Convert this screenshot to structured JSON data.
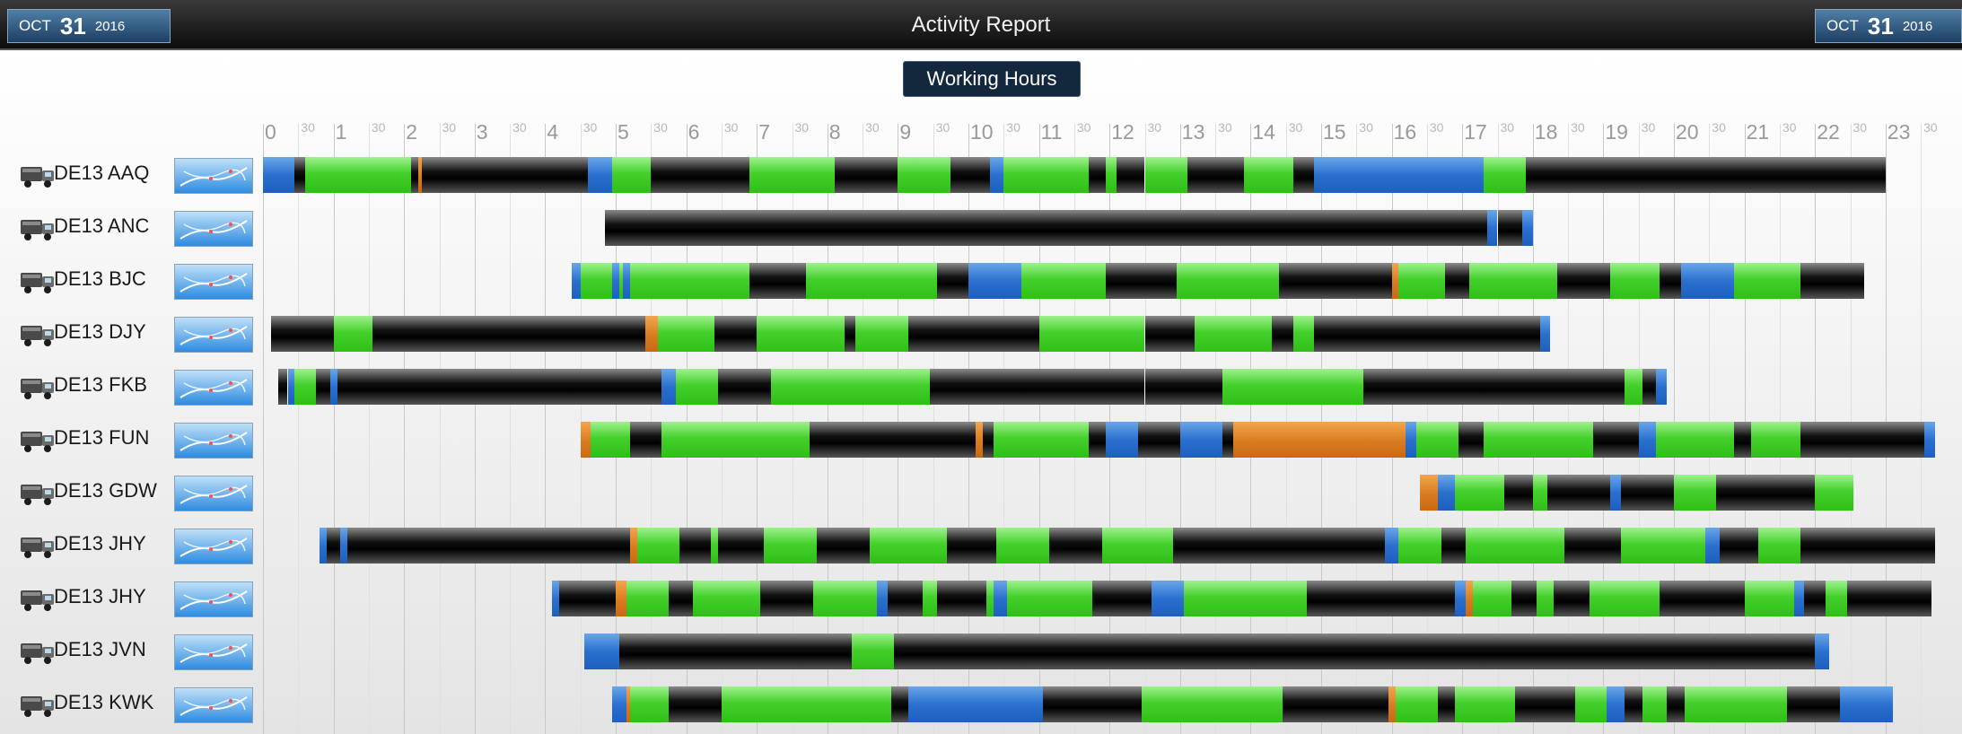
{
  "header": {
    "title": "Activity Report",
    "date_left": {
      "month": "OCT",
      "day": "31",
      "year": "2016"
    },
    "date_right": {
      "month": "OCT",
      "day": "31",
      "year": "2016"
    }
  },
  "section_button": "Working Hours",
  "timeline": {
    "hours": [
      "0",
      "1",
      "2",
      "3",
      "4",
      "5",
      "6",
      "7",
      "8",
      "9",
      "10",
      "11",
      "12",
      "13",
      "14",
      "15",
      "16",
      "17",
      "18",
      "19",
      "20",
      "21",
      "22",
      "23"
    ],
    "half_label": "30"
  },
  "colors": {
    "driving": "#2fbf17",
    "rest": "#000000",
    "available": "#2a70cf",
    "work": "#d87b1e"
  },
  "rows": [
    {
      "label": "DE13 AAQ",
      "segments": [
        [
          "blue",
          0.0,
          0.45
        ],
        [
          "black",
          0.45,
          0.6
        ],
        [
          "green",
          0.6,
          2.1
        ],
        [
          "black",
          2.1,
          2.2
        ],
        [
          "orange",
          2.2,
          2.25
        ],
        [
          "black",
          2.25,
          4.6
        ],
        [
          "blue",
          4.6,
          4.95
        ],
        [
          "green",
          4.95,
          5.5
        ],
        [
          "black",
          5.5,
          6.9
        ],
        [
          "green",
          6.9,
          7.45
        ],
        [
          "green",
          7.45,
          8.1
        ],
        [
          "black",
          8.1,
          9.0
        ],
        [
          "green",
          9.0,
          9.75
        ],
        [
          "black",
          9.75,
          10.3
        ],
        [
          "blue",
          10.3,
          10.5
        ],
        [
          "green",
          10.5,
          11.7
        ],
        [
          "black",
          11.7,
          11.95
        ],
        [
          "green",
          11.95,
          12.1
        ],
        [
          "black",
          12.1,
          12.5
        ],
        [
          "green",
          12.5,
          13.1
        ],
        [
          "black",
          13.1,
          13.9
        ],
        [
          "green",
          13.9,
          14.6
        ],
        [
          "black",
          14.6,
          14.9
        ],
        [
          "blue",
          14.9,
          17.3
        ],
        [
          "green",
          17.3,
          17.9
        ],
        [
          "black",
          17.9,
          23.0
        ]
      ]
    },
    {
      "label": "DE13 ANC",
      "segments": [
        [
          "black",
          4.85,
          17.35
        ],
        [
          "blue",
          17.35,
          17.5
        ],
        [
          "black",
          17.5,
          17.85
        ],
        [
          "blue",
          17.85,
          18.0
        ]
      ]
    },
    {
      "label": "DE13 BJC",
      "segments": [
        [
          "blue",
          4.38,
          4.5
        ],
        [
          "green",
          4.5,
          4.95
        ],
        [
          "blue",
          4.95,
          5.05
        ],
        [
          "green",
          5.05,
          5.1
        ],
        [
          "blue",
          5.1,
          5.2
        ],
        [
          "green",
          5.2,
          5.35
        ],
        [
          "green",
          5.35,
          6.9
        ],
        [
          "black",
          6.9,
          7.7
        ],
        [
          "green",
          7.7,
          8.2
        ],
        [
          "green",
          8.2,
          9.55
        ],
        [
          "black",
          9.55,
          10.0
        ],
        [
          "blue",
          10.0,
          10.75
        ],
        [
          "green",
          10.75,
          11.95
        ],
        [
          "black",
          11.95,
          12.95
        ],
        [
          "green",
          12.95,
          14.4
        ],
        [
          "black",
          14.4,
          16.0
        ],
        [
          "orange",
          16.0,
          16.1
        ],
        [
          "green",
          16.1,
          16.75
        ],
        [
          "black",
          16.75,
          17.1
        ],
        [
          "green",
          17.1,
          18.35
        ],
        [
          "black",
          18.35,
          19.1
        ],
        [
          "green",
          19.1,
          19.8
        ],
        [
          "black",
          19.8,
          20.1
        ],
        [
          "blue",
          20.1,
          20.85
        ],
        [
          "green",
          20.85,
          21.8
        ],
        [
          "black",
          21.8,
          22.7
        ]
      ]
    },
    {
      "label": "DE13 DJY",
      "segments": [
        [
          "black",
          0.12,
          1.0
        ],
        [
          "green",
          1.0,
          1.55
        ],
        [
          "black",
          1.55,
          5.42
        ],
        [
          "orange",
          5.42,
          5.6
        ],
        [
          "green",
          5.6,
          6.4
        ],
        [
          "black",
          6.4,
          7.0
        ],
        [
          "green",
          7.0,
          8.25
        ],
        [
          "black",
          8.25,
          8.4
        ],
        [
          "green",
          8.4,
          9.15
        ],
        [
          "black",
          9.15,
          11.0
        ],
        [
          "green",
          11.0,
          12.5
        ],
        [
          "black",
          12.5,
          13.2
        ],
        [
          "green",
          13.2,
          14.3
        ],
        [
          "black",
          14.3,
          14.6
        ],
        [
          "green",
          14.6,
          14.9
        ],
        [
          "black",
          14.9,
          18.1
        ],
        [
          "blue",
          18.1,
          18.25
        ]
      ]
    },
    {
      "label": "DE13 FKB",
      "segments": [
        [
          "black",
          0.22,
          0.35
        ],
        [
          "blue",
          0.35,
          0.45
        ],
        [
          "green",
          0.45,
          0.75
        ],
        [
          "black",
          0.75,
          0.95
        ],
        [
          "blue",
          0.95,
          1.05
        ],
        [
          "black",
          1.05,
          5.65
        ],
        [
          "blue",
          5.65,
          5.85
        ],
        [
          "green",
          5.85,
          6.45
        ],
        [
          "black",
          6.45,
          7.2
        ],
        [
          "green",
          7.2,
          9.45
        ],
        [
          "black",
          9.45,
          12.5
        ],
        [
          "black",
          12.5,
          13.6
        ],
        [
          "green",
          13.6,
          15.6
        ],
        [
          "black",
          15.6,
          19.3
        ],
        [
          "green",
          19.3,
          19.55
        ],
        [
          "black",
          19.55,
          19.75
        ],
        [
          "blue",
          19.75,
          19.9
        ]
      ]
    },
    {
      "label": "DE13 FUN",
      "segments": [
        [
          "orange",
          4.5,
          4.65
        ],
        [
          "green",
          4.65,
          5.2
        ],
        [
          "black",
          5.2,
          5.65
        ],
        [
          "green",
          5.65,
          7.75
        ],
        [
          "black",
          7.75,
          10.1
        ],
        [
          "orange",
          10.1,
          10.2
        ],
        [
          "black",
          10.2,
          10.35
        ],
        [
          "green",
          10.35,
          11.7
        ],
        [
          "black",
          11.7,
          11.95
        ],
        [
          "blue",
          11.95,
          12.4
        ],
        [
          "black",
          12.4,
          13.0
        ],
        [
          "blue",
          13.0,
          13.6
        ],
        [
          "black",
          13.6,
          13.75
        ],
        [
          "orange",
          13.75,
          16.2
        ],
        [
          "blue",
          16.2,
          16.35
        ],
        [
          "green",
          16.35,
          16.95
        ],
        [
          "black",
          16.95,
          17.3
        ],
        [
          "green",
          17.3,
          18.85
        ],
        [
          "black",
          18.85,
          19.5
        ],
        [
          "blue",
          19.5,
          19.75
        ],
        [
          "green",
          19.75,
          20.85
        ],
        [
          "black",
          20.85,
          21.1
        ],
        [
          "green",
          21.1,
          21.8
        ],
        [
          "black",
          21.8,
          22.45
        ],
        [
          "black",
          22.45,
          23.55
        ],
        [
          "blue",
          23.55,
          23.7
        ]
      ]
    },
    {
      "label": "DE13 GDW",
      "segments": [
        [
          "orange",
          16.4,
          16.65
        ],
        [
          "blue",
          16.65,
          16.9
        ],
        [
          "green",
          16.9,
          17.6
        ],
        [
          "black",
          17.6,
          18.0
        ],
        [
          "green",
          18.0,
          18.2
        ],
        [
          "black",
          18.2,
          19.1
        ],
        [
          "blue",
          19.1,
          19.25
        ],
        [
          "black",
          19.25,
          20.0
        ],
        [
          "green",
          20.0,
          20.6
        ],
        [
          "black",
          20.6,
          21.5
        ],
        [
          "black",
          21.5,
          22.0
        ],
        [
          "green",
          22.0,
          22.55
        ]
      ]
    },
    {
      "label": "DE13 JHY",
      "segments": [
        [
          "blue",
          0.8,
          0.9
        ],
        [
          "black",
          0.9,
          1.1
        ],
        [
          "blue",
          1.1,
          1.2
        ],
        [
          "black",
          1.2,
          5.2
        ],
        [
          "orange",
          5.2,
          5.3
        ],
        [
          "green",
          5.3,
          5.9
        ],
        [
          "black",
          5.9,
          6.35
        ],
        [
          "green",
          6.35,
          6.45
        ],
        [
          "black",
          6.45,
          7.1
        ],
        [
          "green",
          7.1,
          7.85
        ],
        [
          "black",
          7.85,
          8.6
        ],
        [
          "green",
          8.6,
          9.7
        ],
        [
          "black",
          9.7,
          10.4
        ],
        [
          "green",
          10.4,
          11.15
        ],
        [
          "black",
          11.15,
          11.9
        ],
        [
          "green",
          11.9,
          12.9
        ],
        [
          "black",
          12.9,
          15.9
        ],
        [
          "blue",
          15.9,
          16.1
        ],
        [
          "green",
          16.1,
          16.7
        ],
        [
          "black",
          16.7,
          17.05
        ],
        [
          "green",
          17.05,
          18.45
        ],
        [
          "black",
          18.45,
          19.25
        ],
        [
          "green",
          19.25,
          20.45
        ],
        [
          "blue",
          20.45,
          20.65
        ],
        [
          "black",
          20.65,
          21.2
        ],
        [
          "green",
          21.2,
          21.8
        ],
        [
          "black",
          21.8,
          23.7
        ]
      ]
    },
    {
      "label": "DE13 JHY",
      "segments": [
        [
          "blue",
          4.1,
          4.2
        ],
        [
          "black",
          4.2,
          5.0
        ],
        [
          "orange",
          5.0,
          5.15
        ],
        [
          "green",
          5.15,
          5.75
        ],
        [
          "black",
          5.75,
          6.1
        ],
        [
          "green",
          6.1,
          7.05
        ],
        [
          "black",
          7.05,
          7.8
        ],
        [
          "green",
          7.8,
          8.7
        ],
        [
          "blue",
          8.7,
          8.85
        ],
        [
          "black",
          8.85,
          9.35
        ],
        [
          "green",
          9.35,
          9.55
        ],
        [
          "black",
          9.55,
          10.25
        ],
        [
          "green",
          10.25,
          10.35
        ],
        [
          "blue",
          10.35,
          10.55
        ],
        [
          "green",
          10.55,
          11.75
        ],
        [
          "black",
          11.75,
          12.6
        ],
        [
          "blue",
          12.6,
          13.05
        ],
        [
          "green",
          13.05,
          14.8
        ],
        [
          "black",
          14.8,
          16.9
        ],
        [
          "blue",
          16.9,
          17.05
        ],
        [
          "orange",
          17.05,
          17.15
        ],
        [
          "green",
          17.15,
          17.7
        ],
        [
          "black",
          17.7,
          18.05
        ],
        [
          "green",
          18.05,
          18.3
        ],
        [
          "black",
          18.3,
          18.8
        ],
        [
          "green",
          18.8,
          19.8
        ],
        [
          "black",
          19.8,
          21.0
        ],
        [
          "green",
          21.0,
          21.7
        ],
        [
          "blue",
          21.7,
          21.85
        ],
        [
          "black",
          21.85,
          22.15
        ],
        [
          "green",
          22.15,
          22.45
        ],
        [
          "black",
          22.45,
          23.65
        ]
      ]
    },
    {
      "label": "DE13 JVN",
      "segments": [
        [
          "blue",
          4.55,
          5.05
        ],
        [
          "black",
          5.05,
          8.35
        ],
        [
          "green",
          8.35,
          8.95
        ],
        [
          "black",
          8.95,
          12.0
        ],
        [
          "black",
          12.0,
          14.2
        ],
        [
          "black",
          14.2,
          22.0
        ],
        [
          "blue",
          22.0,
          22.2
        ]
      ]
    },
    {
      "label": "DE13 KWK",
      "segments": [
        [
          "blue",
          4.95,
          5.15
        ],
        [
          "orange",
          5.15,
          5.2
        ],
        [
          "green",
          5.2,
          5.75
        ],
        [
          "black",
          5.75,
          6.5
        ],
        [
          "green",
          6.5,
          8.9
        ],
        [
          "black",
          8.9,
          9.15
        ],
        [
          "blue",
          9.15,
          10.05
        ],
        [
          "blue",
          10.05,
          11.05
        ],
        [
          "black",
          11.05,
          12.45
        ],
        [
          "green",
          12.45,
          14.45
        ],
        [
          "black",
          14.45,
          15.95
        ],
        [
          "orange",
          15.95,
          16.05
        ],
        [
          "green",
          16.05,
          16.65
        ],
        [
          "black",
          16.65,
          16.9
        ],
        [
          "green",
          16.9,
          17.75
        ],
        [
          "black",
          17.75,
          18.6
        ],
        [
          "green",
          18.6,
          19.05
        ],
        [
          "blue",
          19.05,
          19.3
        ],
        [
          "black",
          19.3,
          19.55
        ],
        [
          "green",
          19.55,
          19.9
        ],
        [
          "black",
          19.9,
          20.15
        ],
        [
          "green",
          20.15,
          21.6
        ],
        [
          "black",
          21.6,
          22.35
        ],
        [
          "blue",
          22.35,
          23.1
        ]
      ]
    }
  ]
}
